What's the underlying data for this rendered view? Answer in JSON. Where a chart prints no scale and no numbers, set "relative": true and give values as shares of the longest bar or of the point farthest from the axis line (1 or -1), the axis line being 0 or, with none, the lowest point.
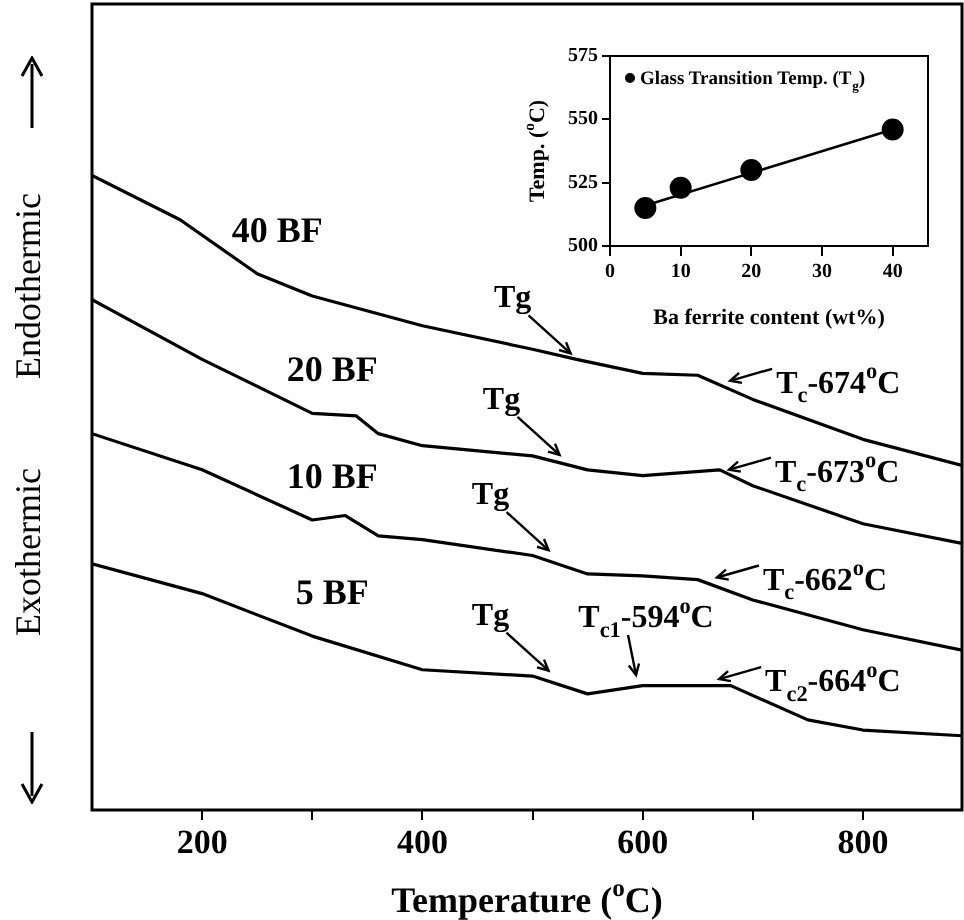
{
  "chart_data": [
    {
      "type": "line",
      "relative": true,
      "xlabel": "Temperature ($^{o}$C)",
      "xlim": [
        100,
        890
      ],
      "xticks": [
        200,
        {
          "value": 300,
          "label": null
        },
        400,
        {
          "value": 500,
          "label": null
        },
        600,
        {
          "value": 700,
          "label": null
        },
        800
      ],
      "series": [
        {
          "name": "40 BF",
          "color": "#000000",
          "x": [
            100,
            180,
            250,
            300,
            400,
            500,
            540,
            600,
            650,
            700,
            800,
            890
          ],
          "values": [
            1.0,
            0.93,
            0.845,
            0.81,
            0.763,
            0.726,
            0.71,
            0.688,
            0.685,
            0.647,
            0.584,
            0.543
          ]
        },
        {
          "name": "20 BF",
          "color": "#000000",
          "x": [
            100,
            200,
            300,
            340,
            360,
            400,
            500,
            550,
            600,
            670,
            700,
            800,
            890
          ],
          "values": [
            0.804,
            0.71,
            0.625,
            0.621,
            0.593,
            0.574,
            0.558,
            0.536,
            0.527,
            0.536,
            0.511,
            0.451,
            0.42
          ]
        },
        {
          "name": "10 BF",
          "color": "#000000",
          "x": [
            100,
            200,
            300,
            330,
            360,
            400,
            500,
            550,
            600,
            650,
            700,
            800,
            890
          ],
          "values": [
            0.593,
            0.536,
            0.457,
            0.464,
            0.432,
            0.426,
            0.401,
            0.372,
            0.369,
            0.363,
            0.331,
            0.284,
            0.252
          ]
        },
        {
          "name": "5 BF",
          "color": "#000000",
          "x": [
            100,
            200,
            300,
            400,
            500,
            550,
            600,
            680,
            750,
            800,
            890
          ],
          "values": [
            0.388,
            0.341,
            0.274,
            0.221,
            0.211,
            0.183,
            0.196,
            0.196,
            0.142,
            0.126,
            0.117
          ]
        }
      ],
      "annotations": [
        "Endothermic",
        "Exothermic",
        {
          "text": "Tg",
          "x": 540,
          "y": 0.71
        },
        {
          "text": "T$_{c}$-674$^{o}$C",
          "x": 674,
          "y": 0.67
        },
        {
          "text": "Tg",
          "x": 530,
          "y": 0.55
        },
        {
          "text": "T$_{c}$-673$^{o}$C",
          "x": 673,
          "y": 0.53
        },
        {
          "text": "Tg",
          "x": 520,
          "y": 0.4
        },
        {
          "text": "T$_{c}$-662$^{o}$C",
          "x": 662,
          "y": 0.36
        },
        {
          "text": "Tg",
          "x": 520,
          "y": 0.21
        },
        {
          "text": "T$_{c1}$-594$^{o}$C",
          "x": 594,
          "y": 0.2
        },
        {
          "text": "T$_{c2}$-664$^{o}$C",
          "x": 664,
          "y": 0.2
        }
      ],
      "line_style": "solid",
      "marker": "none",
      "grid": false,
      "legend": false
    },
    {
      "type": "scatter",
      "xlabel": "Ba ferrite content (wt%)",
      "ylabel": "Temp. ($^{o}$C)",
      "xlim": [
        0,
        45
      ],
      "xticks": [
        0,
        10,
        20,
        30,
        40
      ],
      "ylim": [
        500,
        575
      ],
      "yticks": [
        500,
        525,
        550,
        575
      ],
      "series": [
        {
          "name": "Glass Transition Temp. (T$_{g}$)",
          "color": "#000000",
          "x": [
            5,
            10,
            20,
            40
          ],
          "values": [
            515,
            523,
            530,
            546
          ],
          "marker": "circle"
        },
        {
          "type": "line",
          "color": "#000000",
          "x": [
            5,
            40
          ],
          "values": [
            516,
            546
          ],
          "marker": "none"
        }
      ],
      "legend": "top left",
      "grid": false
    }
  ]
}
